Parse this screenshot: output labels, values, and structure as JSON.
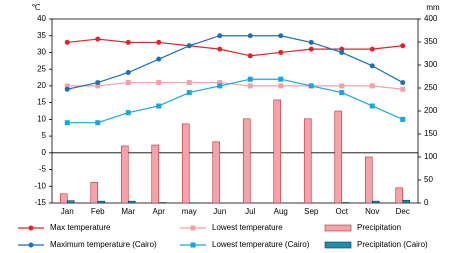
{
  "chart_data": {
    "type": "combo",
    "y_unit": "℃",
    "y2_unit": "mm",
    "categories": [
      "Jan",
      "Feb",
      "Mar",
      "Apr",
      "may",
      "Jun",
      "Jul",
      "Aug",
      "Sep",
      "Oct",
      "Nov",
      "Dec"
    ],
    "ylim": [
      -15,
      40
    ],
    "yticks": [
      -15,
      -10,
      -5,
      0,
      5,
      10,
      15,
      20,
      25,
      30,
      35,
      40
    ],
    "y2lim": [
      0,
      400
    ],
    "y2ticks": [
      0,
      50,
      100,
      150,
      200,
      250,
      300,
      350,
      400
    ],
    "series": [
      {
        "name": "Max temperature",
        "type": "line",
        "marker": "circle",
        "color": "#e8202a",
        "values": [
          33,
          34,
          33,
          33,
          32,
          31,
          29,
          30,
          31,
          31,
          31,
          32
        ]
      },
      {
        "name": "Lowest temperature",
        "type": "line",
        "marker": "square",
        "color": "#f4a0a8",
        "values": [
          20,
          20,
          21,
          21,
          21,
          21,
          20,
          20,
          20,
          20,
          20,
          19
        ]
      },
      {
        "name": "Precipitation",
        "type": "bar",
        "axis": "y2",
        "color": "#f5a3a8",
        "edge": "#b03040",
        "values": [
          20,
          45,
          124,
          126,
          172,
          133,
          183,
          224,
          183,
          200,
          100,
          33
        ]
      },
      {
        "name": "Maximum temperature (Cairo)",
        "type": "line",
        "marker": "circle",
        "color": "#1e6fb8",
        "values": [
          19,
          21,
          24,
          28,
          32,
          35,
          35,
          35,
          33,
          30,
          26,
          21
        ]
      },
      {
        "name": "Lowest temperature (Cairo)",
        "type": "line",
        "marker": "square",
        "color": "#19a6e0",
        "values": [
          9,
          9,
          12,
          14,
          18,
          20,
          22,
          22,
          20,
          18,
          14,
          10
        ]
      },
      {
        "name": "Precipitation (Cairo)",
        "type": "bar",
        "axis": "y2",
        "color": "#1b8fb0",
        "edge": "#0a3a50",
        "values": [
          5,
          4,
          4,
          1,
          0.5,
          0,
          0,
          0,
          0,
          1,
          4,
          6
        ]
      }
    ]
  }
}
